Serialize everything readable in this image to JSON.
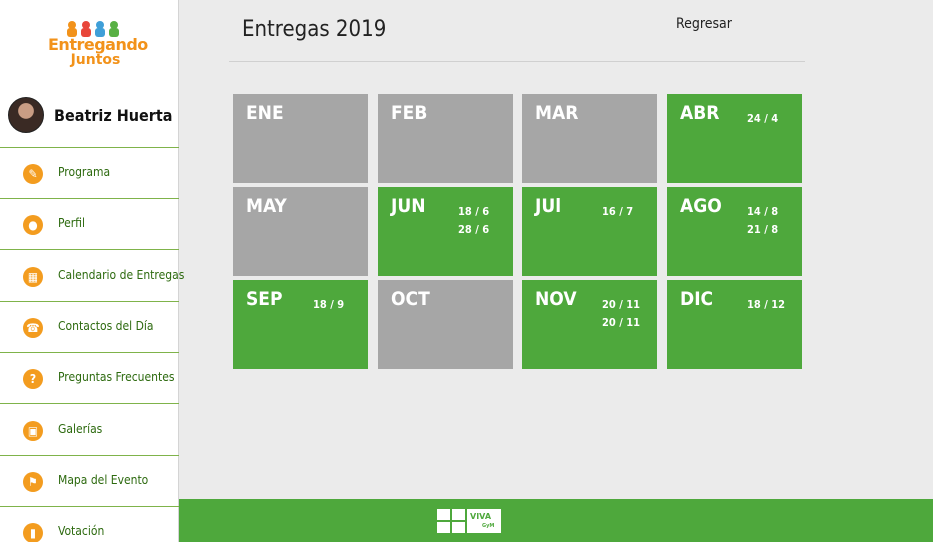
{
  "logo": {
    "line1": "Entregando",
    "line2": "Juntos"
  },
  "user": {
    "name": "Beatriz Huerta"
  },
  "menu": [
    {
      "label": "Programa",
      "icon": "edit-icon",
      "glyph": "✎"
    },
    {
      "label": "Perfil",
      "icon": "user-icon",
      "glyph": "●"
    },
    {
      "label": "Calendario de Entregas",
      "icon": "calendar-icon",
      "glyph": "▦"
    },
    {
      "label": "Contactos del Día",
      "icon": "contacts-icon",
      "glyph": "☎"
    },
    {
      "label": "Preguntas Frecuentes",
      "icon": "question-icon",
      "glyph": "?"
    },
    {
      "label": "Galerías",
      "icon": "image-icon",
      "glyph": "▣"
    },
    {
      "label": "Mapa del Evento",
      "icon": "map-icon",
      "glyph": "⚑"
    },
    {
      "label": "Votación",
      "icon": "chart-icon",
      "glyph": "▮"
    }
  ],
  "header": {
    "title": "Entregas 2019",
    "back_label": "Regresar"
  },
  "months": [
    {
      "name": "ENE",
      "active": false,
      "dates": []
    },
    {
      "name": "FEB",
      "active": false,
      "dates": []
    },
    {
      "name": "MAR",
      "active": false,
      "dates": []
    },
    {
      "name": "ABR",
      "active": true,
      "dates": [
        "24 / 4"
      ]
    },
    {
      "name": "MAY",
      "active": false,
      "dates": []
    },
    {
      "name": "JUN",
      "active": true,
      "dates": [
        "18 / 6",
        "28 / 6"
      ]
    },
    {
      "name": "JUl",
      "active": true,
      "dates": [
        "16 / 7"
      ]
    },
    {
      "name": "AGO",
      "active": true,
      "dates": [
        "14 / 8",
        "21 / 8"
      ]
    },
    {
      "name": "SEP",
      "active": true,
      "dates": [
        "18 / 9"
      ]
    },
    {
      "name": "OCT",
      "active": false,
      "dates": []
    },
    {
      "name": "NOV",
      "active": true,
      "dates": [
        "20 / 11",
        "20 / 11"
      ]
    },
    {
      "name": "DIC",
      "active": true,
      "dates": [
        "18 / 12"
      ]
    }
  ],
  "footer": {
    "brand_line1": "VIVA",
    "brand_line2": "GyM"
  },
  "colors": {
    "active": "#4ea83c",
    "inactive": "#a6a6a6",
    "accent": "#f39c1f",
    "menu_text": "#2d6a0f"
  }
}
